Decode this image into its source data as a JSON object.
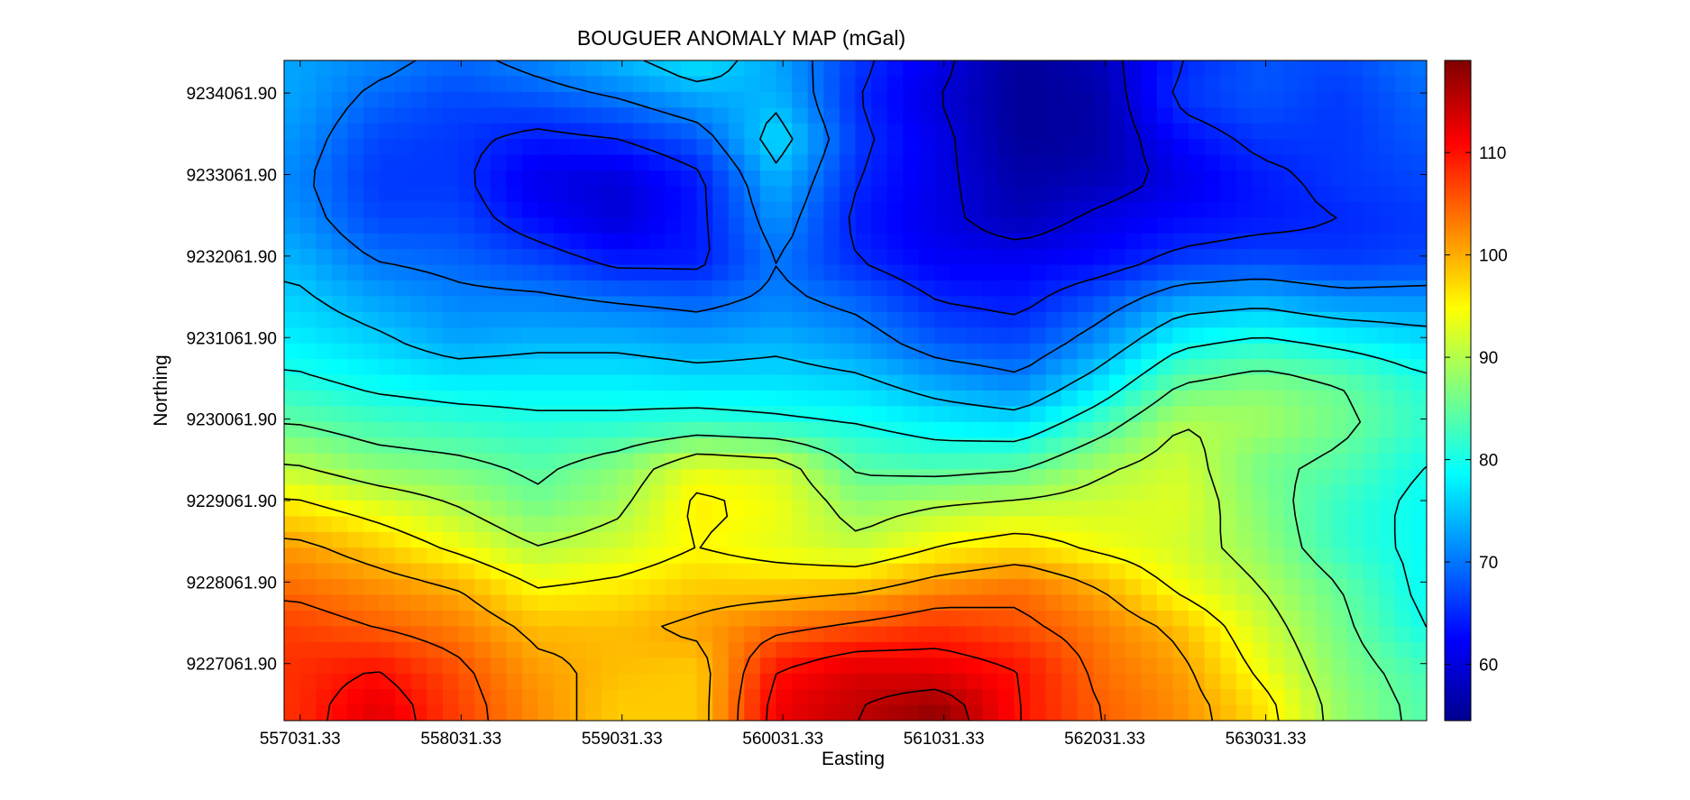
{
  "chart_data": {
    "type": "heatmap",
    "title": "BOUGUER ANOMALY MAP (mGal)",
    "xlabel": "Easting",
    "ylabel": "Northing",
    "xlim": [
      556931.33,
      564031.33
    ],
    "ylim": [
      9226361.9,
      9234461.9
    ],
    "x_ticks": [
      557031.33,
      558031.33,
      559031.33,
      560031.33,
      561031.33,
      562031.33,
      563031.33
    ],
    "x_tick_labels": [
      "557031.33",
      "558031.33",
      "559031.33",
      "560031.33",
      "561031.33",
      "562031.33",
      "563031.33"
    ],
    "y_ticks": [
      9227061.9,
      9228061.9,
      9229061.9,
      9230061.9,
      9231061.9,
      9232061.9,
      9233061.9,
      9234061.9
    ],
    "y_tick_labels": [
      "9227061.90",
      "9228061.90",
      "9229061.90",
      "9230061.90",
      "9231061.90",
      "9232061.90",
      "9233061.90",
      "9234061.90"
    ],
    "colorbar": {
      "range": [
        54.5,
        119
      ],
      "ticks": [
        60,
        70,
        80,
        90,
        100,
        110
      ],
      "tick_labels": [
        "60",
        "70",
        "80",
        "90",
        "100",
        "110"
      ],
      "colormap": "jet"
    },
    "contours": true,
    "x": [
      557000,
      557500,
      558000,
      558500,
      559000,
      559500,
      560000,
      560500,
      561000,
      561500,
      562000,
      562500,
      563000,
      563500,
      564000
    ],
    "y": [
      9234400,
      9234000,
      9233500,
      9233000,
      9232500,
      9232000,
      9231500,
      9231000,
      9230500,
      9230000,
      9229500,
      9229000,
      9228500,
      9228000,
      9227500,
      9227000,
      9226500
    ],
    "values": [
      [
        73,
        71,
        69,
        71,
        74,
        77,
        73,
        66,
        61,
        56,
        58,
        65,
        68,
        67,
        70
      ],
      [
        73,
        69,
        67,
        68,
        70,
        73,
        74,
        65,
        60,
        56,
        57,
        66,
        68,
        66,
        69
      ],
      [
        72,
        67,
        66,
        64,
        65,
        68,
        77,
        66,
        61,
        56,
        57,
        63,
        66,
        66,
        68
      ],
      [
        71,
        66,
        66,
        61,
        60,
        64,
        74,
        65,
        61,
        57,
        58,
        61,
        64,
        66,
        67
      ],
      [
        72,
        67,
        67,
        63,
        60,
        64,
        72,
        64,
        61,
        58,
        61,
        63,
        64,
        65,
        66
      ],
      [
        74,
        70,
        69,
        67,
        64,
        64,
        70,
        65,
        62,
        62,
        63,
        66,
        67,
        66,
        67
      ],
      [
        76,
        73,
        71,
        71,
        70,
        69,
        71,
        69,
        65,
        64,
        68,
        73,
        74,
        72,
        72
      ],
      [
        78,
        76,
        73,
        74,
        74,
        73,
        74,
        72,
        68,
        67,
        72,
        79,
        81,
        79,
        77
      ],
      [
        81,
        79,
        78,
        78,
        78,
        77,
        77,
        76,
        73,
        71,
        77,
        85,
        87,
        85,
        81
      ],
      [
        85,
        83,
        82,
        81,
        81,
        82,
        81,
        80,
        78,
        77,
        83,
        90,
        89,
        86,
        82
      ],
      [
        90,
        87,
        86,
        84,
        87,
        93,
        92,
        84,
        83,
        84,
        89,
        92,
        86,
        84,
        80
      ],
      [
        96,
        93,
        90,
        86,
        89,
        96,
        94,
        88,
        90,
        91,
        92,
        93,
        87,
        82,
        79
      ],
      [
        101,
        98,
        94,
        90,
        92,
        95,
        93,
        91,
        95,
        97,
        94,
        92,
        88,
        82,
        79
      ],
      [
        104,
        102,
        100,
        95,
        96,
        98,
        98,
        99,
        102,
        104,
        100,
        94,
        90,
        85,
        79
      ],
      [
        107,
        105,
        103,
        99,
        99,
        101,
        104,
        106,
        108,
        106,
        103,
        99,
        92,
        86,
        80
      ],
      [
        108,
        110,
        106,
        101,
        99,
        98,
        110,
        113,
        112,
        110,
        104,
        101,
        94,
        87,
        83
      ],
      [
        108,
        113,
        107,
        102,
        98,
        98,
        112,
        115,
        118,
        110,
        105,
        102,
        97,
        88,
        84
      ]
    ]
  }
}
